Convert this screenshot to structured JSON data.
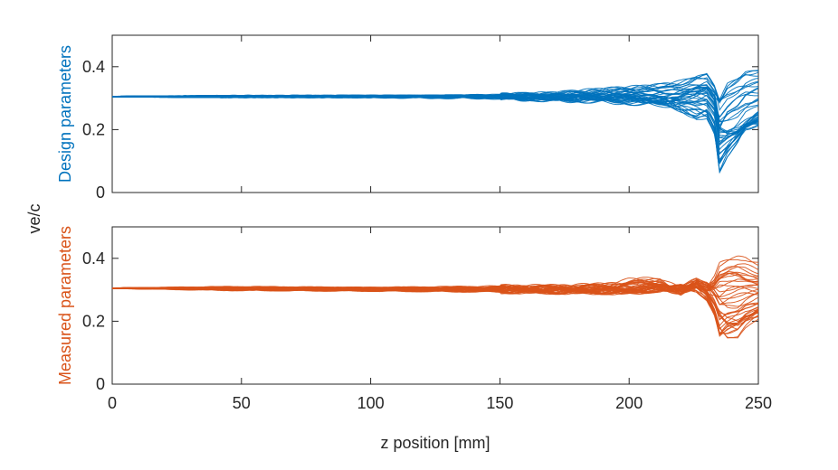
{
  "chart_data": [
    {
      "type": "line",
      "ylabel": "Design parameters",
      "color": "#0072BD",
      "xlim": [
        0,
        250
      ],
      "ylim": [
        0,
        0.5
      ],
      "xticks": [
        0,
        50,
        100,
        150,
        200,
        250
      ],
      "xtick_labels_visible": false,
      "yticks": [
        0,
        0.2,
        0.4
      ],
      "ytick_labels": [
        "0",
        "0.2",
        "0.4"
      ],
      "series": [
        {
          "x": [
            0,
            50,
            100,
            150,
            170,
            190,
            200,
            212,
            220,
            226,
            230,
            233,
            235,
            238,
            242,
            245,
            250
          ],
          "y": [
            0.305,
            0.305,
            0.305,
            0.31,
            0.315,
            0.33,
            0.335,
            0.345,
            0.36,
            0.38,
            0.39,
            0.35,
            0.29,
            0.355,
            0.375,
            0.4,
            0.405
          ]
        },
        {
          "x": [
            0,
            50,
            100,
            150,
            170,
            190,
            200,
            212,
            220,
            226,
            230,
            233,
            235,
            238,
            242,
            245,
            250
          ],
          "y": [
            0.305,
            0.305,
            0.305,
            0.308,
            0.31,
            0.32,
            0.325,
            0.33,
            0.33,
            0.34,
            0.335,
            0.31,
            0.29,
            0.31,
            0.33,
            0.34,
            0.345
          ]
        },
        {
          "x": [
            0,
            50,
            100,
            150,
            170,
            190,
            200,
            212,
            220,
            226,
            230,
            233,
            235,
            238,
            242,
            245,
            250
          ],
          "y": [
            0.305,
            0.305,
            0.306,
            0.305,
            0.3,
            0.3,
            0.295,
            0.29,
            0.3,
            0.32,
            0.33,
            0.3,
            0.2,
            0.19,
            0.2,
            0.22,
            0.25
          ]
        },
        {
          "x": [
            0,
            50,
            100,
            150,
            170,
            190,
            200,
            212,
            220,
            226,
            230,
            233,
            235,
            238,
            242,
            245,
            250
          ],
          "y": [
            0.305,
            0.305,
            0.304,
            0.3,
            0.295,
            0.29,
            0.285,
            0.28,
            0.27,
            0.26,
            0.25,
            0.2,
            0.07,
            0.12,
            0.16,
            0.2,
            0.22
          ]
        },
        {
          "x": [
            0,
            50,
            100,
            150,
            170,
            190,
            200,
            212,
            220,
            226,
            230,
            233,
            235,
            238,
            242,
            245,
            250
          ],
          "y": [
            0.305,
            0.306,
            0.307,
            0.306,
            0.305,
            0.305,
            0.31,
            0.3,
            0.26,
            0.23,
            0.24,
            0.19,
            0.1,
            0.14,
            0.18,
            0.21,
            0.22
          ]
        }
      ]
    },
    {
      "type": "line",
      "ylabel": "Measured parameters",
      "xlabel": "z position [mm]",
      "color": "#D95319",
      "xlim": [
        0,
        250
      ],
      "ylim": [
        0,
        0.5
      ],
      "xticks": [
        0,
        50,
        100,
        150,
        200,
        250
      ],
      "xtick_labels": [
        "0",
        "50",
        "100",
        "150",
        "200",
        "250"
      ],
      "yticks": [
        0,
        0.2,
        0.4
      ],
      "ytick_labels": [
        "0",
        "0.2",
        "0.4"
      ],
      "series": [
        {
          "x": [
            0,
            50,
            100,
            150,
            170,
            190,
            200,
            212,
            220,
            226,
            230,
            233,
            235,
            238,
            242,
            245,
            250
          ],
          "y": [
            0.305,
            0.308,
            0.305,
            0.31,
            0.31,
            0.315,
            0.33,
            0.335,
            0.3,
            0.33,
            0.31,
            0.34,
            0.38,
            0.39,
            0.4,
            0.4,
            0.385
          ]
        },
        {
          "x": [
            0,
            50,
            100,
            150,
            170,
            190,
            200,
            212,
            220,
            226,
            230,
            233,
            235,
            238,
            242,
            245,
            250
          ],
          "y": [
            0.305,
            0.305,
            0.303,
            0.305,
            0.305,
            0.31,
            0.315,
            0.32,
            0.29,
            0.32,
            0.305,
            0.32,
            0.34,
            0.35,
            0.35,
            0.34,
            0.33
          ]
        },
        {
          "x": [
            0,
            50,
            100,
            150,
            170,
            190,
            200,
            212,
            220,
            226,
            230,
            233,
            235,
            238,
            242,
            245,
            250
          ],
          "y": [
            0.305,
            0.302,
            0.3,
            0.298,
            0.296,
            0.295,
            0.295,
            0.3,
            0.31,
            0.33,
            0.32,
            0.29,
            0.26,
            0.27,
            0.28,
            0.285,
            0.29
          ]
        },
        {
          "x": [
            0,
            50,
            100,
            150,
            170,
            190,
            200,
            212,
            220,
            226,
            230,
            233,
            235,
            238,
            242,
            245,
            250
          ],
          "y": [
            0.305,
            0.3,
            0.298,
            0.295,
            0.293,
            0.292,
            0.29,
            0.3,
            0.31,
            0.3,
            0.27,
            0.22,
            0.15,
            0.18,
            0.2,
            0.22,
            0.23
          ]
        },
        {
          "x": [
            0,
            50,
            100,
            150,
            170,
            190,
            200,
            212,
            220,
            226,
            230,
            233,
            235,
            238,
            242,
            245,
            250
          ],
          "y": [
            0.305,
            0.305,
            0.305,
            0.303,
            0.302,
            0.3,
            0.3,
            0.305,
            0.29,
            0.31,
            0.29,
            0.24,
            0.19,
            0.15,
            0.14,
            0.17,
            0.21
          ]
        }
      ]
    }
  ],
  "shared_ylabel": "ve/c"
}
